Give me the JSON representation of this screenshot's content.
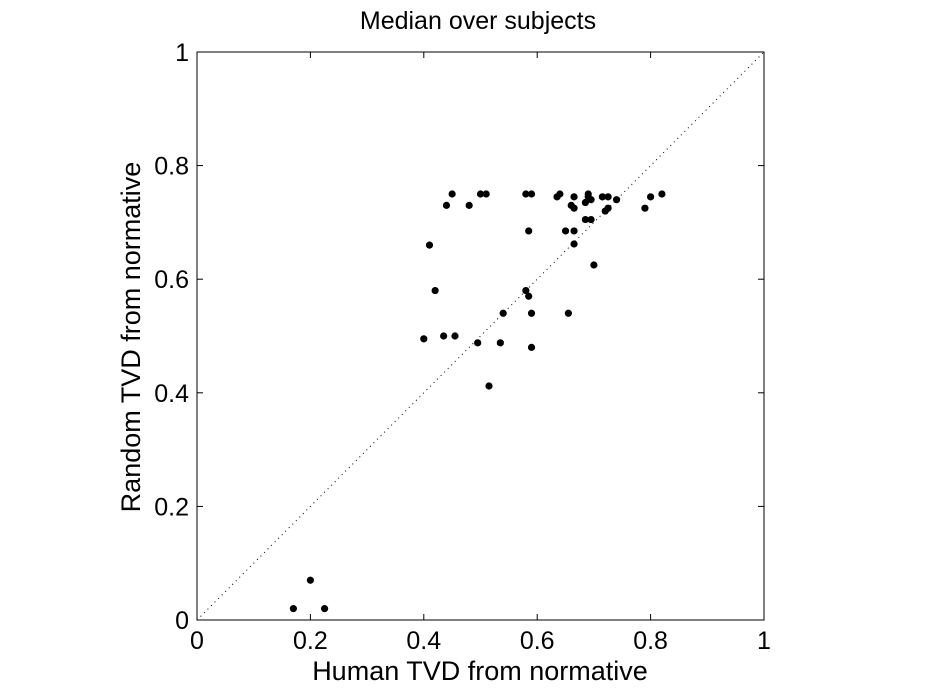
{
  "chart_data": {
    "type": "scatter",
    "title": "Median over subjects",
    "xlabel": "Human TVD from normative",
    "ylabel": "Random TVD from normative",
    "xlim": [
      0,
      1
    ],
    "ylim": [
      0,
      1
    ],
    "xticks": [
      0,
      0.2,
      0.4,
      0.6,
      0.8,
      1
    ],
    "yticks": [
      0,
      0.2,
      0.4,
      0.6,
      0.8,
      1
    ],
    "xtick_labels": [
      "0",
      "0.2",
      "0.4",
      "0.6",
      "0.8",
      "1"
    ],
    "ytick_labels": [
      "0",
      "0.2",
      "0.4",
      "0.6",
      "0.8",
      "1"
    ],
    "grid": false,
    "reference_line": {
      "style": "dotted",
      "from": [
        0,
        0
      ],
      "to": [
        1,
        1
      ]
    },
    "marker_color": "#000000",
    "series": [
      {
        "points": [
          [
            0.17,
            0.02
          ],
          [
            0.2,
            0.07
          ],
          [
            0.225,
            0.02
          ],
          [
            0.4,
            0.495
          ],
          [
            0.41,
            0.66
          ],
          [
            0.42,
            0.58
          ],
          [
            0.435,
            0.5
          ],
          [
            0.44,
            0.73
          ],
          [
            0.45,
            0.75
          ],
          [
            0.455,
            0.5
          ],
          [
            0.48,
            0.73
          ],
          [
            0.495,
            0.488
          ],
          [
            0.5,
            0.75
          ],
          [
            0.51,
            0.75
          ],
          [
            0.515,
            0.412
          ],
          [
            0.535,
            0.488
          ],
          [
            0.54,
            0.54
          ],
          [
            0.58,
            0.75
          ],
          [
            0.58,
            0.58
          ],
          [
            0.585,
            0.57
          ],
          [
            0.585,
            0.685
          ],
          [
            0.59,
            0.75
          ],
          [
            0.59,
            0.48
          ],
          [
            0.59,
            0.54
          ],
          [
            0.635,
            0.745
          ],
          [
            0.64,
            0.75
          ],
          [
            0.65,
            0.685
          ],
          [
            0.655,
            0.54
          ],
          [
            0.66,
            0.73
          ],
          [
            0.665,
            0.685
          ],
          [
            0.665,
            0.745
          ],
          [
            0.665,
            0.725
          ],
          [
            0.665,
            0.662
          ],
          [
            0.685,
            0.705
          ],
          [
            0.685,
            0.735
          ],
          [
            0.69,
            0.745
          ],
          [
            0.69,
            0.75
          ],
          [
            0.695,
            0.74
          ],
          [
            0.695,
            0.705
          ],
          [
            0.7,
            0.625
          ],
          [
            0.715,
            0.745
          ],
          [
            0.72,
            0.72
          ],
          [
            0.725,
            0.725
          ],
          [
            0.725,
            0.745
          ],
          [
            0.74,
            0.74
          ],
          [
            0.79,
            0.725
          ],
          [
            0.8,
            0.745
          ],
          [
            0.82,
            0.75
          ]
        ]
      }
    ]
  }
}
